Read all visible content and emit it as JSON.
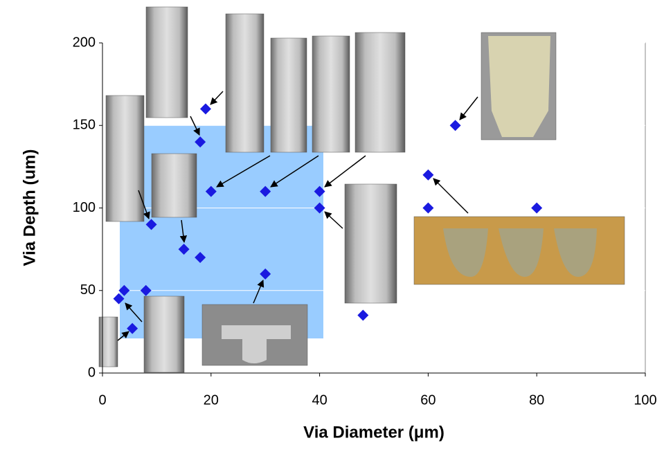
{
  "chart_data": {
    "type": "scatter",
    "x_label": "Via Diameter (μm)",
    "y_label": "Via Depth (um)",
    "x": [
      19,
      18,
      20,
      30,
      40,
      40,
      9,
      15,
      18,
      30,
      4,
      3,
      8,
      5.5,
      48,
      60,
      60,
      80,
      65
    ],
    "values": [
      160,
      140,
      110,
      110,
      110,
      100,
      90,
      75,
      70,
      60,
      50,
      45,
      50,
      27,
      35,
      120,
      100,
      100,
      150
    ],
    "color": "#1a1ae0",
    "xlim": [
      0,
      100
    ],
    "xticks": [
      0,
      20,
      40,
      60,
      80,
      100
    ],
    "ylim": [
      0,
      200
    ],
    "yticks": [
      0,
      50,
      100,
      150,
      200
    ],
    "grid": true
  }
}
